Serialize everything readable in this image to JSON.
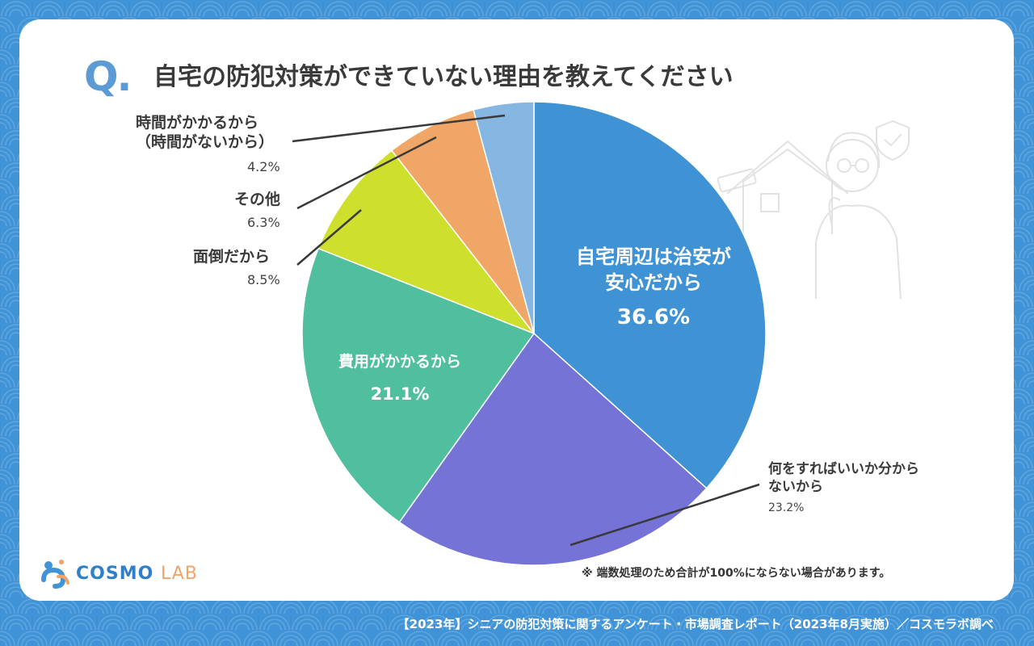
{
  "question_mark": "Q.",
  "title": "自宅の防犯対策ができていない理由を教えてください",
  "chart_data": {
    "type": "pie",
    "title": "自宅の防犯対策ができていない理由を教えてください",
    "start": "12 o'clock",
    "direction": "clockwise",
    "slices": [
      {
        "label_lines": [
          "自宅周辺は治安が",
          "安心だから"
        ],
        "value": 36.6,
        "value_label": "36.6%",
        "color": "#3f93d4",
        "label_position": "inside"
      },
      {
        "label_lines": [
          "何をすればいいか分から",
          "ないから"
        ],
        "value": 23.2,
        "value_label": "23.2%",
        "color": "#7574d6",
        "label_position": "outside-right"
      },
      {
        "label_lines": [
          "費用がかかるから"
        ],
        "value": 21.1,
        "value_label": "21.1%",
        "color": "#4fbf9e",
        "label_position": "inside"
      },
      {
        "label_lines": [
          "面倒だから"
        ],
        "value": 8.5,
        "value_label": "8.5%",
        "color": "#cfdf2e",
        "label_position": "outside-left"
      },
      {
        "label_lines": [
          "その他"
        ],
        "value": 6.3,
        "value_label": "6.3%",
        "color": "#f0a666",
        "label_position": "outside-left"
      },
      {
        "label_lines": [
          "時間がかかるから",
          "（時間がないから）"
        ],
        "value": 4.2,
        "value_label": "4.2%",
        "color": "#86b6e2",
        "label_position": "outside-left"
      }
    ]
  },
  "note": "※ 端数処理のため合計が100%にならない場合があります。",
  "logo": {
    "text_main": "COSMO",
    "text_sub": "LAB"
  },
  "footer": "【2023年】シニアの防犯対策に関するアンケート・市場調査レポート（2023年8月実施）／コスモラボ調べ",
  "colors": {
    "background": "#3f93d6",
    "card": "#ffffff",
    "accent": "#5c9bd3",
    "text": "#3a3a3a"
  }
}
